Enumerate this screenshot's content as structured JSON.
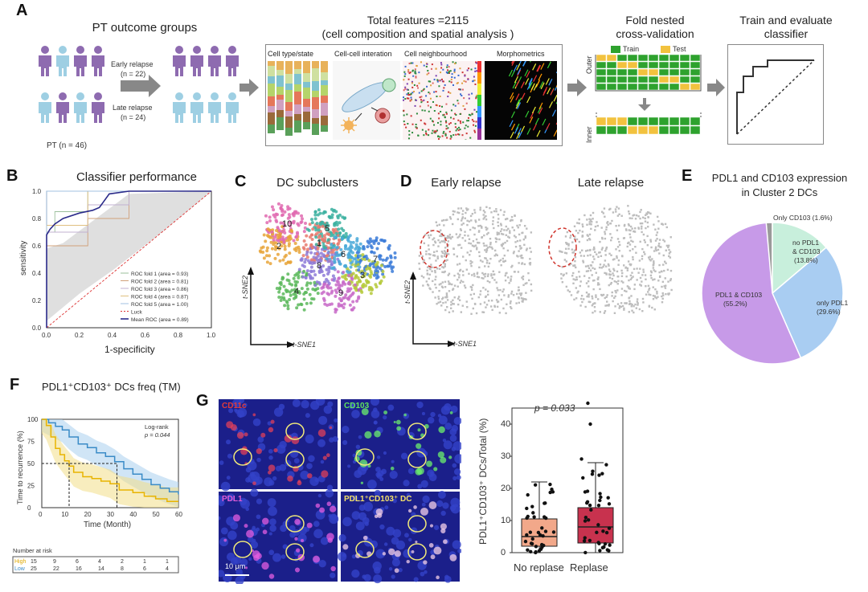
{
  "panels": {
    "A": {
      "label": "A",
      "pt_title": "PT outcome groups",
      "early_label": "Early relapse",
      "early_n": "(n = 22)",
      "late_label": "Late relapse",
      "late_n": "(n = 24)",
      "pt_n": "PT (n = 46)",
      "features_title_1": "Total features =2115",
      "features_title_2": "(cell composition and spatial analysis )",
      "feature_tiles": [
        "Cell type/state",
        "Cell-cell interation",
        "Cell neighbourhood",
        "Morphometrics"
      ],
      "cv_title_1": "Fold nested",
      "cv_title_2": "cross-validation",
      "cv_train": "Train",
      "cv_test": "Test",
      "cv_outer": "Outer",
      "cv_inner": "Inner",
      "eval_title_1": "Train and evaluate",
      "eval_title_2": "classifier",
      "colors": {
        "purple": "#8e6bb0",
        "lightblue": "#9ecfe3",
        "green": "#2ea22e",
        "yellow": "#f2c23e"
      }
    },
    "B": {
      "label": "B",
      "title": "Classifier performance",
      "xlabel": "1-specificity",
      "ylabel": "sensitivity",
      "legend": [
        "ROC fold 1 (area = 0.93)",
        "ROC fold 2 (area = 0.81)",
        "ROC fold 3 (area = 0.86)",
        "ROC fold 4 (area = 0.87)",
        "ROC fold 5 (area = 1.00)",
        "Luck",
        "Mean ROC (area = 0.89)"
      ]
    },
    "C": {
      "label": "C",
      "title": "DC subclusters",
      "xaxis": "t-SNE1",
      "yaxis": "t-SNE2",
      "cluster_labels": [
        "1",
        "2",
        "3",
        "4",
        "5",
        "6",
        "7",
        "8",
        "9",
        "10"
      ]
    },
    "D": {
      "label": "D",
      "early": "Early relapse",
      "late": "Late relapse",
      "xaxis": "t-SNE1",
      "yaxis": "t-SNE2"
    },
    "E": {
      "label": "E",
      "title_1": "PDL1 and CD103 expression",
      "title_2": "in Cluster 2 DCs",
      "slices": [
        {
          "name": "PDL1 & CD103",
          "pct": "(55.2%)",
          "value": 55.2,
          "color": "#c79ae8"
        },
        {
          "name": "only PDL1",
          "pct": "(29.6%)",
          "value": 29.6,
          "color": "#a9cdf2"
        },
        {
          "name": "no PDL1 & CD103",
          "pct": "(13.8%)",
          "value": 13.8,
          "color": "#c8efdc"
        },
        {
          "name": "Only CD103",
          "pct": "(1.6%)",
          "value": 1.6,
          "color": "#9a9a9a"
        }
      ]
    },
    "F": {
      "label": "F",
      "title": "PDL1⁺CD103⁺ DCs freq (TM)",
      "logrank": "Log-rank",
      "pval": "p = 0.044",
      "xlabel": "Time (Month)",
      "ylabel": "Time to recurrence (%)",
      "risk_title": "Number at risk",
      "risk_rows": [
        {
          "name": "High",
          "values": [
            "15",
            "9",
            "6",
            "4",
            "2",
            "1",
            "1"
          ]
        },
        {
          "name": "Low",
          "values": [
            "25",
            "22",
            "16",
            "14",
            "8",
            "6",
            "4"
          ]
        }
      ],
      "xticks": [
        "0",
        "10",
        "20",
        "30",
        "40",
        "50",
        "60"
      ],
      "yticks": [
        "0",
        "25",
        "50",
        "75",
        "100"
      ]
    },
    "G": {
      "label": "G",
      "mic_labels": [
        "CD11c",
        "CD103",
        "PDL1",
        "PDL1⁺CD103⁺ DC"
      ],
      "scale": "10 μm",
      "pval": "p = 0.033",
      "ylabel": "PDL1⁺CD103⁺ DCs/Total (%)",
      "categories": [
        "No replase",
        "Replase"
      ],
      "yticks": [
        "0",
        "10",
        "20",
        "30",
        "40"
      ]
    }
  },
  "chart_data": [
    {
      "type": "line",
      "title": "Classifier performance",
      "xlabel": "1-specificity",
      "ylabel": "sensitivity",
      "xlim": [
        0,
        1
      ],
      "ylim": [
        0,
        1
      ],
      "series": [
        {
          "name": "ROC fold 1 (area = 0.93)",
          "x": [
            0,
            0,
            0.05,
            0.05,
            0.25,
            0.25,
            0.5,
            0.5,
            1
          ],
          "y": [
            0,
            0.7,
            0.7,
            0.85,
            0.85,
            1,
            1,
            1,
            1
          ]
        },
        {
          "name": "ROC fold 2 (area = 0.81)",
          "x": [
            0,
            0,
            0.25,
            0.25,
            0.5,
            0.5,
            1
          ],
          "y": [
            0,
            0.6,
            0.6,
            0.8,
            0.8,
            1,
            1
          ]
        },
        {
          "name": "ROC fold 3 (area = 0.86)",
          "x": [
            0,
            0,
            0.25,
            0.25,
            0.5,
            0.5,
            1
          ],
          "y": [
            0,
            0.7,
            0.7,
            0.9,
            0.9,
            1,
            1
          ]
        },
        {
          "name": "ROC fold 4 (area = 0.87)",
          "x": [
            0,
            0,
            0.25,
            0.25,
            1
          ],
          "y": [
            0,
            0.75,
            0.75,
            1,
            1
          ]
        },
        {
          "name": "ROC fold 5 (area = 1.00)",
          "x": [
            0,
            0,
            1
          ],
          "y": [
            0,
            1,
            1
          ]
        },
        {
          "name": "Luck",
          "x": [
            0,
            1
          ],
          "y": [
            0,
            1
          ]
        },
        {
          "name": "Mean ROC (area = 0.89)",
          "x": [
            0,
            0,
            0.02,
            0.05,
            0.1,
            0.2,
            0.28,
            0.32,
            0.38,
            0.5,
            1
          ],
          "y": [
            0,
            0.68,
            0.72,
            0.76,
            0.8,
            0.84,
            0.86,
            0.88,
            0.98,
            1,
            1
          ]
        }
      ]
    },
    {
      "type": "pie",
      "title": "PDL1 and CD103 expression in Cluster 2 DCs",
      "categories": [
        "PDL1 & CD103",
        "only PDL1",
        "no PDL1 & CD103",
        "Only CD103"
      ],
      "values": [
        55.2,
        29.6,
        13.8,
        1.6
      ]
    },
    {
      "type": "line",
      "title": "PDL1⁺CD103⁺ DCs freq (TM)",
      "xlabel": "Time (Month)",
      "ylabel": "Time to recurrence (%)",
      "xlim": [
        0,
        60
      ],
      "ylim": [
        0,
        100
      ],
      "series": [
        {
          "name": "High",
          "color": "#e8b400",
          "x": [
            0,
            2,
            4,
            6,
            8,
            10,
            12,
            14,
            18,
            22,
            26,
            30,
            34,
            40,
            45,
            50,
            55,
            60
          ],
          "y": [
            100,
            93,
            80,
            67,
            60,
            53,
            47,
            40,
            35,
            33,
            30,
            27,
            20,
            17,
            13,
            10,
            7,
            7
          ]
        },
        {
          "name": "Low",
          "color": "#3a8bc7",
          "x": [
            0,
            3,
            6,
            9,
            12,
            16,
            20,
            24,
            28,
            32,
            36,
            40,
            44,
            48,
            52,
            56,
            60
          ],
          "y": [
            100,
            96,
            92,
            88,
            80,
            72,
            68,
            62,
            58,
            52,
            44,
            38,
            32,
            26,
            22,
            18,
            15
          ]
        }
      ]
    },
    {
      "type": "bar",
      "title": "",
      "ylabel": "PDL1⁺CD103⁺ DCs/Total (%)",
      "categories": [
        "No replase",
        "Replase"
      ],
      "series": [
        {
          "name": "median",
          "values": [
            5,
            8
          ]
        },
        {
          "name": "q1",
          "values": [
            2,
            3
          ]
        },
        {
          "name": "q3",
          "values": [
            10.5,
            14
          ]
        },
        {
          "name": "whisker_low",
          "values": [
            0,
            0
          ]
        },
        {
          "name": "whisker_high",
          "values": [
            22,
            28
          ]
        }
      ],
      "ylim": [
        0,
        45
      ]
    }
  ]
}
